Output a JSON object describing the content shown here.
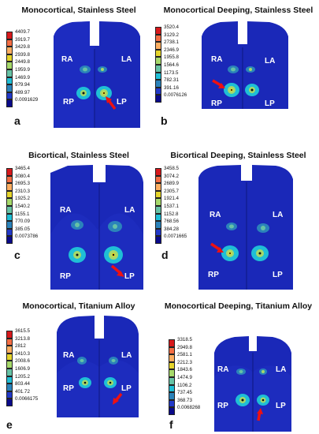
{
  "panels": [
    {
      "id": "a",
      "title": "Monocortical, Stainless Steel",
      "labels": [
        "4409.7",
        "3919.7",
        "3429.8",
        "2939.8",
        "2449.8",
        "1959.9",
        "1469.9",
        "979.94",
        "489.97",
        "0.0091629"
      ]
    },
    {
      "id": "b",
      "title": "Monocortical Deeping, Stainless Steel",
      "labels": [
        "3520.4",
        "3129.2",
        "2738.1",
        "2346.9",
        "1955.8",
        "1564.6",
        "1173.5",
        "782.31",
        "391.16",
        "0.0076126"
      ]
    },
    {
      "id": "c",
      "title": "Bicortical, Stainless Steel",
      "labels": [
        "3465.4",
        "3080.4",
        "2695.3",
        "2310.3",
        "1925.2",
        "1540.2",
        "1155.1",
        "770.09",
        "385.05",
        "0.0073786"
      ]
    },
    {
      "id": "d",
      "title": "Bicortical Deeping, Stainless Steel",
      "labels": [
        "3458.5",
        "3074.2",
        "2689.9",
        "2305.7",
        "1921.4",
        "1537.1",
        "1152.8",
        "768.56",
        "384.28",
        "0.0071665"
      ]
    },
    {
      "id": "e",
      "title": "Monocortical, Titanium Alloy",
      "labels": [
        "3615.5",
        "3213.8",
        "2812",
        "2410.3",
        "2008.6",
        "1606.9",
        "1205.2",
        "803.44",
        "401.72",
        "0.0066175"
      ]
    },
    {
      "id": "f",
      "title": "Monocortical Deeping, Titanium Alloy",
      "labels": [
        "3318.5",
        "2949.8",
        "2581.1",
        "2212.3",
        "1843.6",
        "1474.9",
        "1106.2",
        "737.45",
        "368.73",
        "0.0068268"
      ]
    }
  ],
  "region_labels": {
    "ra": "RA",
    "la": "LA",
    "rp": "RP",
    "lp": "LP"
  },
  "colors": {
    "scale": [
      "#d7191c",
      "#f46d43",
      "#fdae61",
      "#e6d52b",
      "#a6d96a",
      "#66c2a5",
      "#1fbfd6",
      "#2b83ba",
      "#2239c8",
      "#0a0a8a"
    ],
    "model": "#1a28b8",
    "model_dark": "#101a8a",
    "arrow": "#ee1111"
  }
}
